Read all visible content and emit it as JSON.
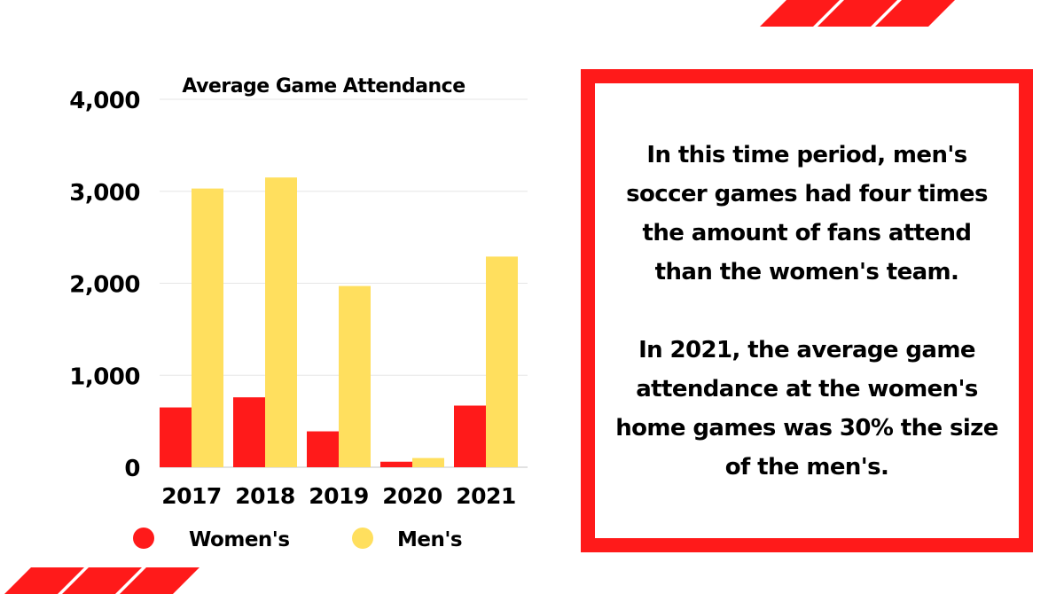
{
  "colors": {
    "accent": "#ff1a1a",
    "women": "#ff1a1a",
    "men": "#ffdf5e",
    "grid": "#e6e6e6"
  },
  "chart_data": {
    "type": "bar",
    "title": "Average Game Attendance",
    "categories": [
      "2017",
      "2018",
      "2019",
      "2020",
      "2021"
    ],
    "series": [
      {
        "name": "Women's",
        "color": "#ff1a1a",
        "values": [
          650,
          760,
          390,
          60,
          670
        ]
      },
      {
        "name": "Men's",
        "color": "#ffdf5e",
        "values": [
          3030,
          3150,
          1970,
          100,
          2290
        ]
      }
    ],
    "ylim": [
      0,
      4000
    ],
    "yticks": [
      0,
      1000,
      2000,
      3000,
      4000
    ],
    "ytick_labels": [
      "0",
      "1,000",
      "2,000",
      "3,000",
      "4,000"
    ],
    "grid": true,
    "legend": "bottom"
  },
  "callout": {
    "paragraph1": "In this time period, men's soccer games had four times the amount of fans attend than the women's team.",
    "paragraph2": "In 2021, the average game attendance at the women's home games was 30% the size of the men's."
  }
}
